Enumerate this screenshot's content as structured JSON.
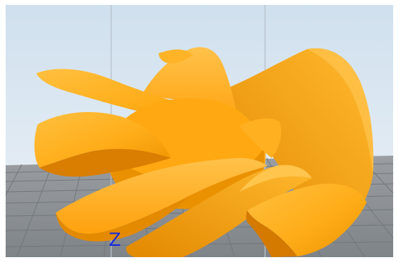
{
  "viewport": {
    "axis_label": "Z"
  },
  "colors": {
    "sky_top": "#c9dbea",
    "sky_bottom": "#e8eef4",
    "build_plate": "#8f9397",
    "grid_line": "#747a7f",
    "model_main": "#ffad19",
    "model_shadow": "#e68d00",
    "model_dark": "#c66f00",
    "model_highlight": "#ffd05a",
    "vertical_guide": "#c8d1d9",
    "axis_z": "#1a2bdc"
  },
  "scene": {
    "object": "impeller-model"
  }
}
